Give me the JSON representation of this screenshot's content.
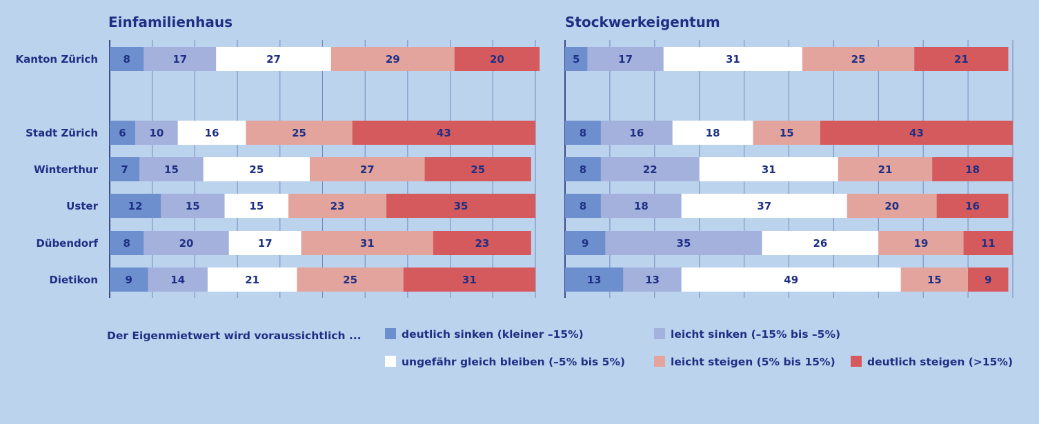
{
  "colors": {
    "background": "#bcd3ee",
    "text": "#1e2f84",
    "grid": "#3a4a8a",
    "categories": [
      "#6d8fcd",
      "#a3b1dc",
      "#ffffff",
      "#e3a49d",
      "#d55a5e"
    ]
  },
  "chart_data": [
    {
      "type": "bar",
      "orientation": "horizontal-stacked-percent",
      "title": "Einfamilienhaus",
      "categories": [
        "Kanton Zürich",
        "Stadt Zürich",
        "Winterthur",
        "Uster",
        "Dübendorf",
        "Dietikon"
      ],
      "series": [
        {
          "name": "deutlich sinken (kleiner –15%)",
          "values": [
            8,
            6,
            7,
            12,
            8,
            9
          ]
        },
        {
          "name": "leicht sinken (–15% bis –5%)",
          "values": [
            17,
            10,
            15,
            15,
            20,
            14
          ]
        },
        {
          "name": "ungefähr gleich bleiben (–5% bis 5%)",
          "values": [
            27,
            16,
            25,
            15,
            17,
            21
          ]
        },
        {
          "name": "leicht steigen (5% bis 15%)",
          "values": [
            29,
            25,
            27,
            23,
            31,
            25
          ]
        },
        {
          "name": "deutlich steigen (>15%)",
          "values": [
            20,
            43,
            25,
            35,
            23,
            31
          ]
        }
      ],
      "xlim": [
        0,
        100
      ],
      "grid": true
    },
    {
      "type": "bar",
      "orientation": "horizontal-stacked-percent",
      "title": "Stockwerkeigentum",
      "categories": [
        "Kanton Zürich",
        "Stadt Zürich",
        "Winterthur",
        "Uster",
        "Dübendorf",
        "Dietikon"
      ],
      "series": [
        {
          "name": "deutlich sinken (kleiner –15%)",
          "values": [
            5,
            8,
            8,
            8,
            9,
            13
          ]
        },
        {
          "name": "leicht sinken (–15% bis –5%)",
          "values": [
            17,
            16,
            22,
            18,
            35,
            13
          ]
        },
        {
          "name": "ungefähr gleich bleiben (–5% bis 5%)",
          "values": [
            31,
            18,
            31,
            37,
            26,
            49
          ]
        },
        {
          "name": "leicht steigen (5% bis 15%)",
          "values": [
            25,
            15,
            21,
            20,
            19,
            15
          ]
        },
        {
          "name": "deutlich steigen (>15%)",
          "values": [
            21,
            43,
            18,
            16,
            11,
            9
          ]
        }
      ],
      "xlim": [
        0,
        100
      ],
      "grid": true
    }
  ],
  "legend": {
    "intro": "Der Eigenmietwert wird voraussichtlich ...",
    "items": [
      "deutlich sinken (kleiner –15%)",
      "leicht sinken (–15% bis –5%)",
      "ungefähr gleich bleiben (–5% bis 5%)",
      "leicht steigen (5% bis 15%)",
      "deutlich steigen (>15%)"
    ]
  }
}
